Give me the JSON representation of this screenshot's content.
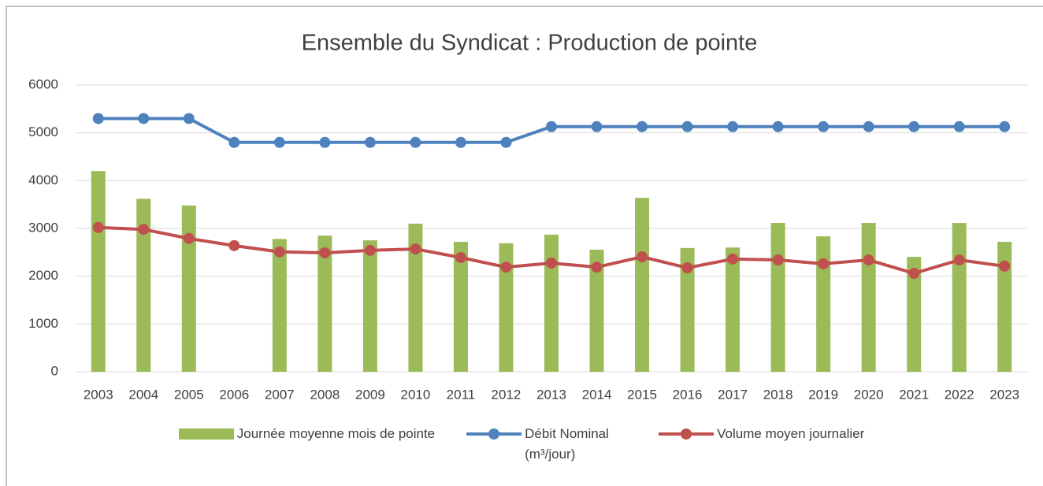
{
  "chart_data": {
    "type": "bar",
    "title": "Ensemble du Syndicat : Production de pointe",
    "categories": [
      "2003",
      "2004",
      "2005",
      "2006",
      "2007",
      "2008",
      "2009",
      "2010",
      "2011",
      "2012",
      "2013",
      "2014",
      "2015",
      "2016",
      "2017",
      "2018",
      "2019",
      "2020",
      "2021",
      "2022",
      "2023"
    ],
    "series": [
      {
        "name": "Journée moyenne mois de pointe",
        "type": "bar",
        "color": "#9bbb59",
        "values": [
          4200,
          3620,
          3480,
          null,
          2780,
          2850,
          2750,
          3100,
          2720,
          2690,
          2870,
          2555,
          3640,
          2590,
          2600,
          3115,
          2835,
          3115,
          2405,
          3115,
          2720
        ]
      },
      {
        "name": "Débit Nominal (m³/jour)",
        "type": "line",
        "color": "#4f81bd",
        "values": [
          5300,
          5300,
          5300,
          4800,
          4800,
          4800,
          4800,
          4800,
          4800,
          4800,
          5130,
          5130,
          5130,
          5130,
          5130,
          5130,
          5130,
          5130,
          5130,
          5130,
          5130
        ]
      },
      {
        "name": "Volume moyen journalier",
        "type": "line",
        "color": "#c0504d",
        "values": [
          3020,
          2980,
          2790,
          2640,
          2510,
          2490,
          2540,
          2570,
          2390,
          2190,
          2275,
          2190,
          2405,
          2175,
          2360,
          2340,
          2260,
          2340,
          2060,
          2340,
          2210
        ]
      }
    ],
    "ylim": [
      0,
      6000
    ],
    "yticks": [
      0,
      1000,
      2000,
      3000,
      4000,
      5000,
      6000
    ],
    "grid": true,
    "legend": "bottom"
  }
}
